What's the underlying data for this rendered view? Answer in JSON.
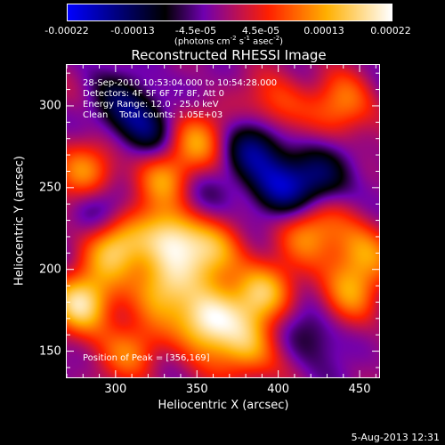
{
  "colorbar": {
    "ticks": [
      "-0.00022",
      "-0.00013",
      "-4.5e-05",
      "4.5e-05",
      "0.00013",
      "0.00022"
    ],
    "unit_prefix": "(photons cm",
    "unit_sup1": "-2",
    "unit_mid": " s",
    "unit_sup2": "-1",
    "unit_mid2": " asec",
    "unit_sup3": "-2",
    "unit_suffix": ")",
    "range": [
      -0.00022,
      0.00022
    ]
  },
  "annotations": {
    "time_range": "28-Sep-2010 10:53:04.000 to 10:54:28.000",
    "detectors": "Detectors: 4F 5F 6F 7F 8F, Att 0",
    "energy": "Energy Range: 12.0 - 25.0 keV",
    "clean": "Clean    Total counts: 1.05E+03",
    "peak": "Position of Peak = [356,169]"
  },
  "footer": {
    "date": "5-Aug-2013 12:31"
  },
  "chart_data": {
    "type": "heatmap",
    "title": "Reconstructed RHESSI Image",
    "xlabel": "Heliocentric X (arcsec)",
    "ylabel": "Heliocentric Y (arcsec)",
    "xlim": [
      270,
      462
    ],
    "ylim": [
      134,
      325
    ],
    "xticks": [
      300,
      350,
      400,
      450
    ],
    "yticks": [
      150,
      200,
      250,
      300
    ],
    "xtick_labels": [
      "300",
      "350",
      "400",
      "450"
    ],
    "ytick_labels": [
      "150",
      "200",
      "250",
      "300"
    ],
    "colormap": [
      "#0000ff",
      "#000000",
      "#7000b0",
      "#ff2000",
      "#ffb000",
      "#ffffff"
    ],
    "peak": [
      356,
      169
    ],
    "blobs": [
      {
        "x": 356,
        "y": 169,
        "v": 1.0
      },
      {
        "x": 280,
        "y": 180,
        "v": 0.9
      },
      {
        "x": 330,
        "y": 190,
        "v": 0.7
      },
      {
        "x": 390,
        "y": 185,
        "v": 0.75
      },
      {
        "x": 300,
        "y": 215,
        "v": 0.8
      },
      {
        "x": 335,
        "y": 220,
        "v": 0.85
      },
      {
        "x": 360,
        "y": 210,
        "v": 0.6
      },
      {
        "x": 280,
        "y": 260,
        "v": 0.6
      },
      {
        "x": 330,
        "y": 255,
        "v": 0.65
      },
      {
        "x": 350,
        "y": 280,
        "v": 0.55
      },
      {
        "x": 420,
        "y": 225,
        "v": 0.6
      },
      {
        "x": 445,
        "y": 185,
        "v": 0.5
      },
      {
        "x": 450,
        "y": 210,
        "v": 0.55
      },
      {
        "x": 440,
        "y": 300,
        "v": 0.5
      },
      {
        "x": 400,
        "y": 300,
        "v": 0.45
      },
      {
        "x": 380,
        "y": 150,
        "v": 0.65
      },
      {
        "x": 310,
        "y": 150,
        "v": 0.5
      },
      {
        "x": 400,
        "y": 250,
        "v": -0.6
      },
      {
        "x": 425,
        "y": 255,
        "v": -0.5
      },
      {
        "x": 385,
        "y": 275,
        "v": -0.55
      },
      {
        "x": 305,
        "y": 300,
        "v": -0.4
      },
      {
        "x": 320,
        "y": 285,
        "v": -0.45
      },
      {
        "x": 290,
        "y": 235,
        "v": -0.35
      },
      {
        "x": 420,
        "y": 160,
        "v": -0.3
      },
      {
        "x": 345,
        "y": 245,
        "v": -0.3
      }
    ]
  }
}
